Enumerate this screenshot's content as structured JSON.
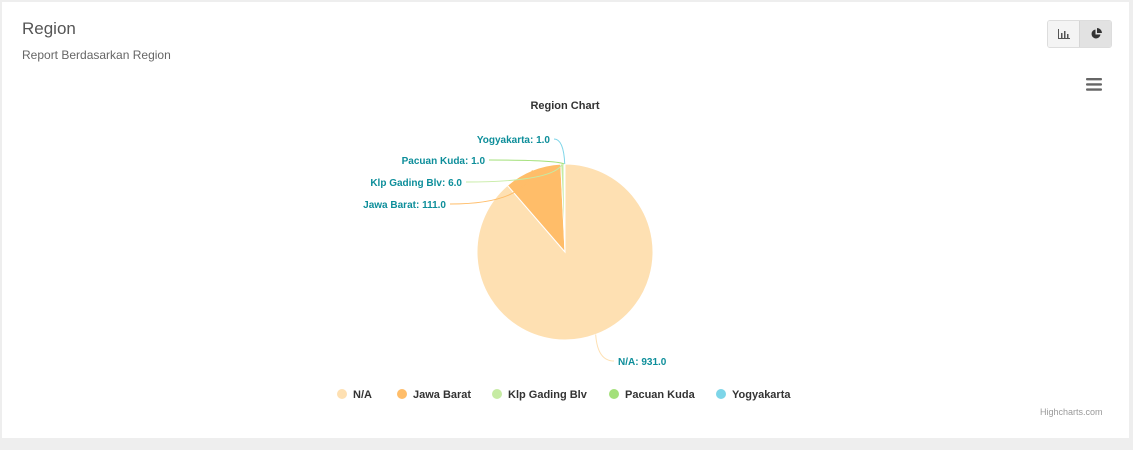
{
  "header": {
    "title": "Region",
    "subtitle": "Report Berdasarkan Region"
  },
  "toolbar": {
    "bar_chart_icon": "bar-chart-icon",
    "pie_chart_icon": "pie-chart-icon",
    "menu_icon": "hamburger-menu-icon"
  },
  "credits": "Highcharts.com",
  "label_color": "#0d8e9a",
  "chart_data": {
    "type": "pie",
    "title": "Region Chart",
    "legend_position": "bottom",
    "series": [
      {
        "name": "N/A",
        "value": 931,
        "label": "N/A: 931.0",
        "color": "#fee0b2"
      },
      {
        "name": "Jawa Barat",
        "value": 111,
        "label": "Jawa Barat: 111.0",
        "color": "#ffbd69"
      },
      {
        "name": "Klp Gading Blv",
        "value": 6,
        "label": "Klp Gading Blv: 6.0",
        "color": "#c6eba3"
      },
      {
        "name": "Pacuan Kuda",
        "value": 1,
        "label": "Pacuan Kuda: 1.0",
        "color": "#a3e07a"
      },
      {
        "name": "Yogyakarta",
        "value": 1,
        "label": "Yogyakarta: 1.0",
        "color": "#7dd5e8"
      }
    ]
  }
}
